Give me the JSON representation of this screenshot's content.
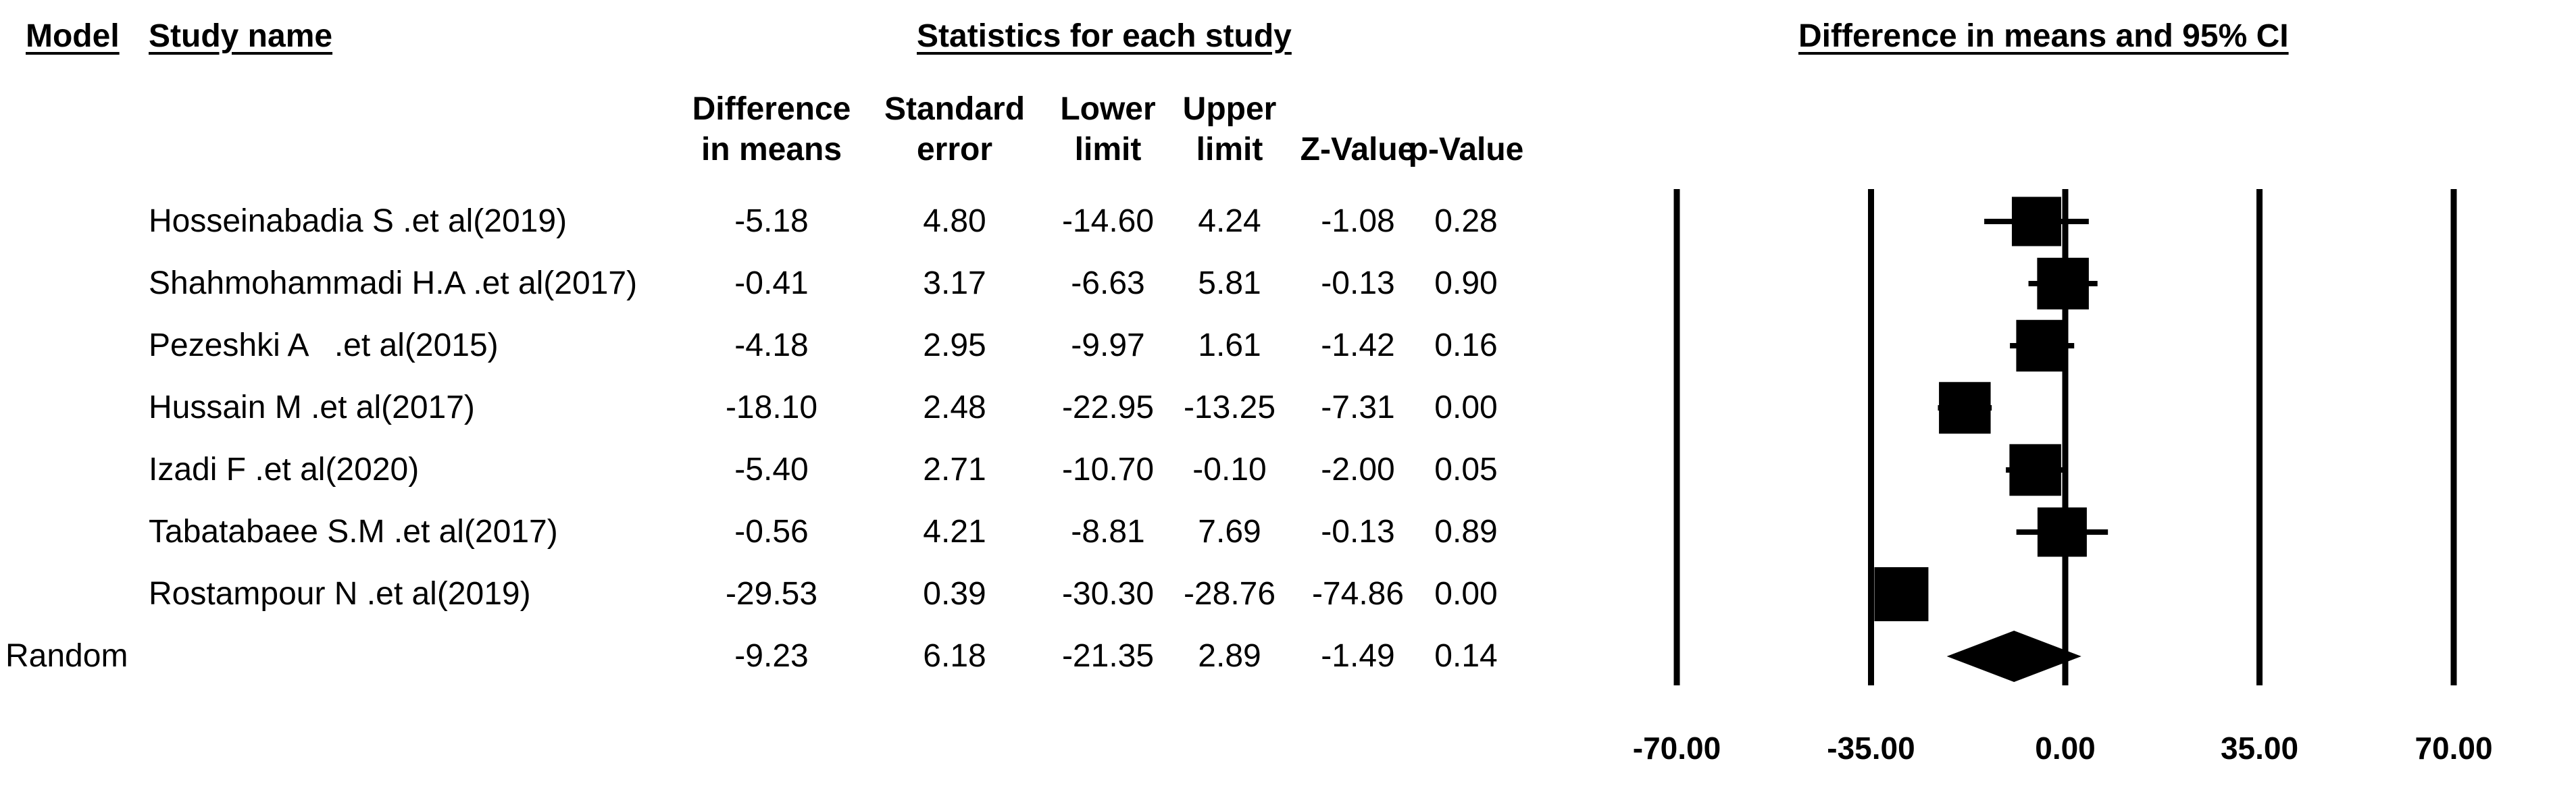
{
  "headers": {
    "model": "Model",
    "study_name": "Study name",
    "statistics": "Statistics for each study",
    "ci": "Difference in means and 95% CI"
  },
  "columns": [
    {
      "line1": "Difference",
      "line2": "in means"
    },
    {
      "line1": "Standard",
      "line2": "error"
    },
    {
      "line1": "Lower",
      "line2": "limit"
    },
    {
      "line1": "Upper",
      "line2": "limit"
    },
    {
      "line1": "",
      "line2": "Z-Value"
    },
    {
      "line1": "",
      "line2": "p-Value"
    }
  ],
  "rows": [
    {
      "model": "",
      "name": "Hosseinabadia S .et al(2019)",
      "cells": [
        "-5.18",
        "4.80",
        "-14.60",
        "4.24",
        "-1.08",
        "0.28"
      ]
    },
    {
      "model": "",
      "name": "Shahmohammadi H.A .et al(2017)",
      "cells": [
        "-0.41",
        "3.17",
        "-6.63",
        "5.81",
        "-0.13",
        "0.90"
      ]
    },
    {
      "model": "",
      "name": "Pezeshki A   .et al(2015)",
      "cells": [
        "-4.18",
        "2.95",
        "-9.97",
        "1.61",
        "-1.42",
        "0.16"
      ]
    },
    {
      "model": "",
      "name": "Hussain M .et al(2017)",
      "cells": [
        "-18.10",
        "2.48",
        "-22.95",
        "-13.25",
        "-7.31",
        "0.00"
      ]
    },
    {
      "model": "",
      "name": "Izadi F .et al(2020)",
      "cells": [
        "-5.40",
        "2.71",
        "-10.70",
        "-0.10",
        "-2.00",
        "0.05"
      ]
    },
    {
      "model": "",
      "name": "Tabatabaee S.M .et al(2017)",
      "cells": [
        "-0.56",
        "4.21",
        "-8.81",
        "7.69",
        "-0.13",
        "0.89"
      ]
    },
    {
      "model": "",
      "name": "Rostampour N .et al(2019)",
      "cells": [
        "-29.53",
        "0.39",
        "-30.30",
        "-28.76",
        "-74.86",
        "0.00"
      ]
    },
    {
      "model": "Random",
      "name": "",
      "cells": [
        "-9.23",
        "6.18",
        "-21.35",
        "2.89",
        "-1.49",
        "0.14"
      ]
    }
  ],
  "chart_data": {
    "type": "forest",
    "xlim": [
      -70,
      70
    ],
    "ticks": [
      -70,
      -35,
      0,
      35,
      70
    ],
    "tick_labels": [
      "-70.00",
      "-35.00",
      "0.00",
      "35.00",
      "70.00"
    ],
    "studies": [
      {
        "estimate": -5.18,
        "lower": -14.6,
        "upper": 4.24,
        "weight": 0.9
      },
      {
        "estimate": -0.41,
        "lower": -6.63,
        "upper": 5.81,
        "weight": 0.95
      },
      {
        "estimate": -4.18,
        "lower": -9.97,
        "upper": 1.61,
        "weight": 0.95
      },
      {
        "estimate": -18.1,
        "lower": -22.95,
        "upper": -13.25,
        "weight": 0.95
      },
      {
        "estimate": -5.4,
        "lower": -10.7,
        "upper": -0.1,
        "weight": 0.95
      },
      {
        "estimate": -0.56,
        "lower": -8.81,
        "upper": 7.69,
        "weight": 0.9
      },
      {
        "estimate": -29.53,
        "lower": -30.3,
        "upper": -28.76,
        "weight": 1.0
      }
    ],
    "summary": {
      "estimate": -9.23,
      "lower": -21.35,
      "upper": 2.89
    }
  }
}
